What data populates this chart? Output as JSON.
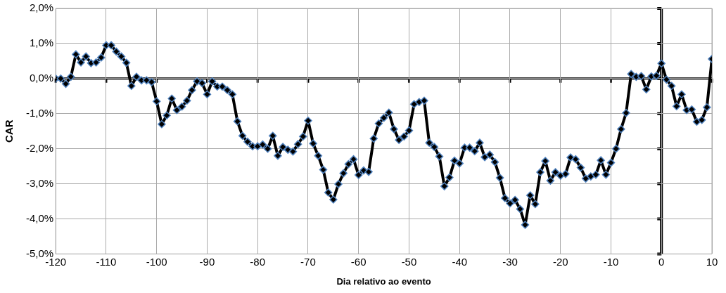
{
  "chart_data": {
    "type": "line",
    "xlabel": "Dia relativo ao evento",
    "ylabel": "CAR",
    "x": [
      -120,
      -119,
      -118,
      -117,
      -116,
      -115,
      -114,
      -113,
      -112,
      -111,
      -110,
      -109,
      -108,
      -107,
      -106,
      -105,
      -104,
      -103,
      -102,
      -101,
      -100,
      -99,
      -98,
      -97,
      -96,
      -95,
      -94,
      -93,
      -92,
      -91,
      -90,
      -89,
      -88,
      -87,
      -86,
      -85,
      -84,
      -83,
      -82,
      -81,
      -80,
      -79,
      -78,
      -77,
      -76,
      -75,
      -74,
      -73,
      -72,
      -71,
      -70,
      -69,
      -68,
      -67,
      -66,
      -65,
      -64,
      -63,
      -62,
      -61,
      -60,
      -59,
      -58,
      -57,
      -56,
      -55,
      -54,
      -53,
      -52,
      -51,
      -50,
      -49,
      -48,
      -47,
      -46,
      -45,
      -44,
      -43,
      -42,
      -41,
      -40,
      -39,
      -38,
      -37,
      -36,
      -35,
      -34,
      -33,
      -32,
      -31,
      -30,
      -29,
      -28,
      -27,
      -26,
      -25,
      -24,
      -23,
      -22,
      -21,
      -20,
      -19,
      -18,
      -17,
      -16,
      -15,
      -14,
      -13,
      -12,
      -11,
      -10,
      -9,
      -8,
      -7,
      -6,
      -5,
      -4,
      -3,
      -2,
      -1,
      0,
      1,
      2,
      3,
      4,
      5,
      6,
      7,
      8,
      9,
      10
    ],
    "series": [
      {
        "color": "#000000",
        "values": [
          0.0,
          0.0,
          -0.15,
          0.05,
          0.69,
          0.46,
          0.63,
          0.44,
          0.46,
          0.6,
          0.95,
          0.95,
          0.77,
          0.63,
          0.45,
          -0.21,
          0.05,
          -0.05,
          -0.05,
          -0.1,
          -0.65,
          -1.3,
          -1.05,
          -0.57,
          -0.9,
          -0.8,
          -0.63,
          -0.33,
          -0.08,
          -0.13,
          -0.45,
          -0.08,
          -0.23,
          -0.23,
          -0.33,
          -0.45,
          -1.22,
          -1.63,
          -1.8,
          -1.93,
          -1.93,
          -1.88,
          -2.0,
          -1.63,
          -2.2,
          -1.95,
          -2.03,
          -2.08,
          -1.87,
          -1.65,
          -1.2,
          -1.85,
          -2.2,
          -2.6,
          -3.25,
          -3.45,
          -3.01,
          -2.7,
          -2.44,
          -2.3,
          -2.75,
          -2.62,
          -2.66,
          -1.71,
          -1.28,
          -1.12,
          -0.97,
          -1.44,
          -1.75,
          -1.65,
          -1.48,
          -0.73,
          -0.67,
          -0.63,
          -1.83,
          -1.95,
          -2.22,
          -3.07,
          -2.82,
          -2.34,
          -2.42,
          -1.97,
          -1.97,
          -2.07,
          -1.83,
          -2.24,
          -2.17,
          -2.38,
          -2.83,
          -3.41,
          -3.56,
          -3.46,
          -3.72,
          -4.17,
          -3.33,
          -3.58,
          -2.67,
          -2.35,
          -2.91,
          -2.67,
          -2.77,
          -2.72,
          -2.25,
          -2.3,
          -2.54,
          -2.85,
          -2.79,
          -2.74,
          -2.33,
          -2.74,
          -2.4,
          -2.0,
          -1.44,
          -0.98,
          0.13,
          0.05,
          0.07,
          -0.31,
          0.06,
          0.08,
          0.43,
          -0.03,
          -0.21,
          -0.79,
          -0.45,
          -0.9,
          -0.88,
          -1.23,
          -1.18,
          -0.82,
          0.56
        ]
      }
    ],
    "xlim": [
      -120,
      10
    ],
    "xticks": [
      -120,
      -110,
      -100,
      -90,
      -80,
      -70,
      -60,
      -50,
      -40,
      -30,
      -20,
      -10,
      0,
      10
    ],
    "ylim": [
      -5,
      2
    ],
    "yticks": [
      {
        "value": -5,
        "label": "-5,0%"
      },
      {
        "value": -4,
        "label": "-4,0%"
      },
      {
        "value": -3,
        "label": "-3,0%"
      },
      {
        "value": -2,
        "label": "-2,0%"
      },
      {
        "value": -1,
        "label": "-1,0%"
      },
      {
        "value": 0,
        "label": "0,0%"
      },
      {
        "value": 1,
        "label": "1,0%"
      },
      {
        "value": 2,
        "label": "2,0%"
      }
    ],
    "grid": true,
    "legend": false,
    "marker": "diamond",
    "line_style": "solid"
  }
}
